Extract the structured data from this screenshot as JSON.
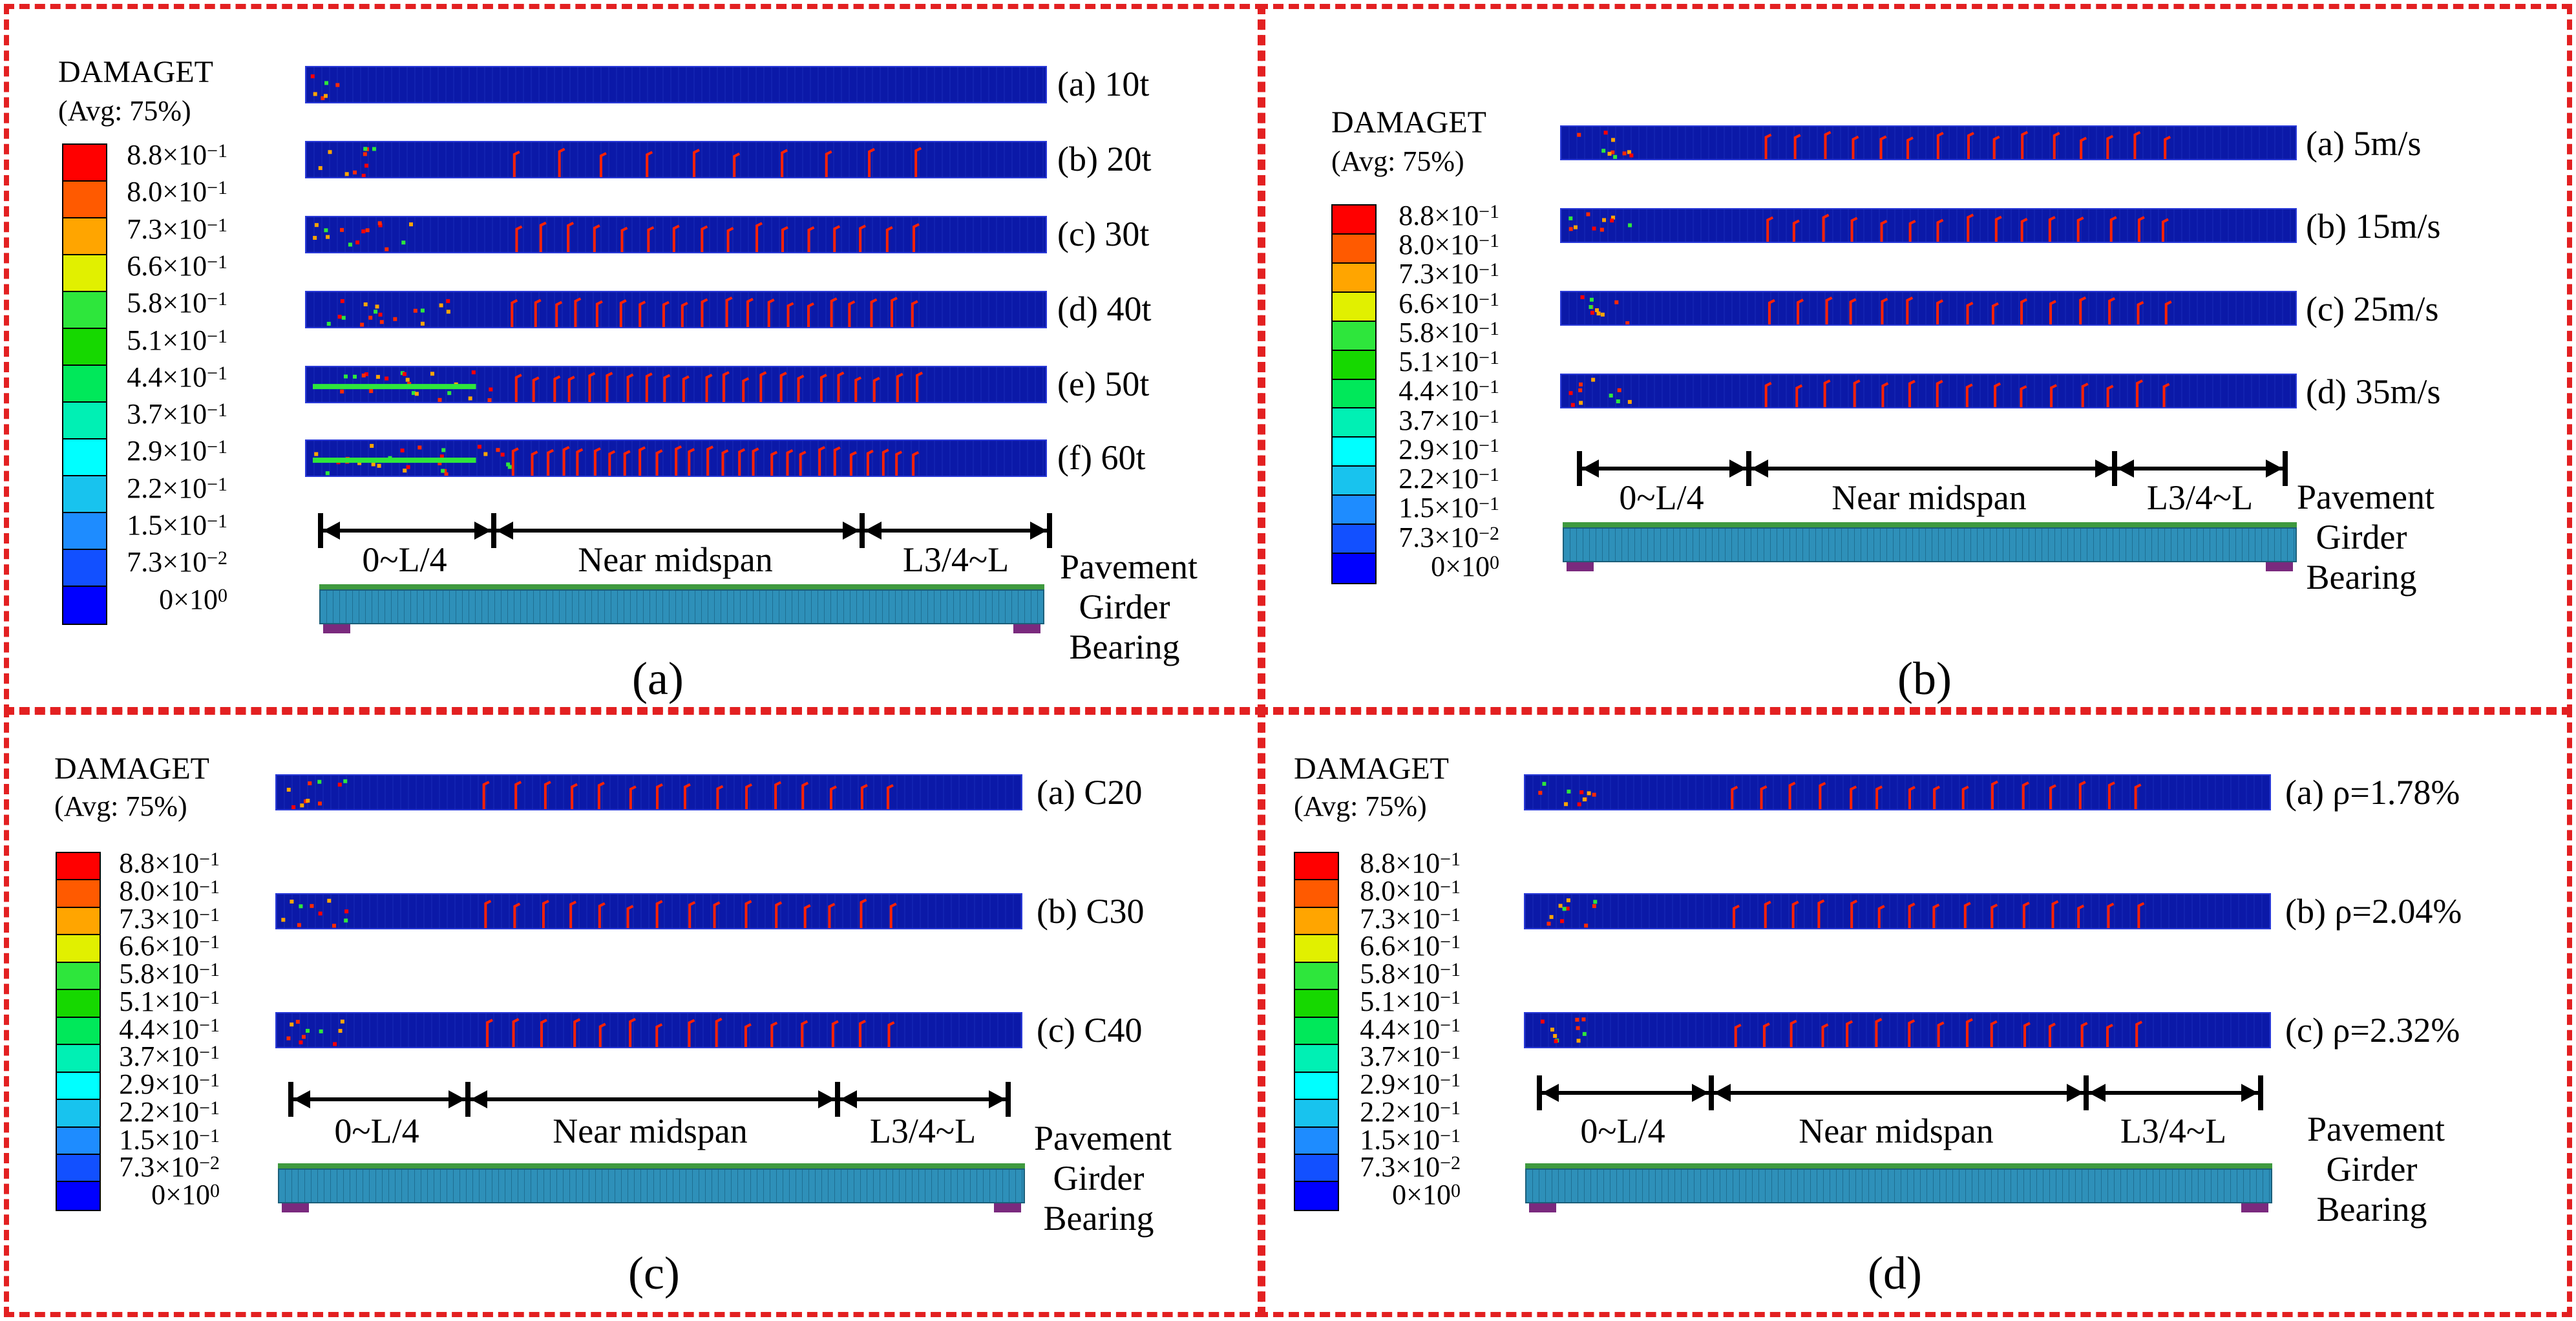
{
  "legend": {
    "title": "DAMAGET",
    "subtitle": "(Avg: 75%)",
    "colors": [
      "#ff0000",
      "#ff5a00",
      "#ffa500",
      "#e1f000",
      "#2ee63c",
      "#16d800",
      "#00e85a",
      "#00f0b4",
      "#00ffff",
      "#18c3ee",
      "#1e8cff",
      "#1250ff",
      "#0000ff"
    ],
    "ticks": [
      {
        "m": "8.8",
        "e": "−1"
      },
      {
        "m": "8.0",
        "e": "−1"
      },
      {
        "m": "7.3",
        "e": "−1"
      },
      {
        "m": "6.6",
        "e": "−1"
      },
      {
        "m": "5.8",
        "e": "−1"
      },
      {
        "m": "5.1",
        "e": "−1"
      },
      {
        "m": "4.4",
        "e": "−1"
      },
      {
        "m": "3.7",
        "e": "−1"
      },
      {
        "m": "2.9",
        "e": "−1"
      },
      {
        "m": "2.2",
        "e": "−1"
      },
      {
        "m": "1.5",
        "e": "−1"
      },
      {
        "m": "7.3",
        "e": "−2"
      },
      {
        "m": "0",
        "e": "0"
      }
    ]
  },
  "zones": {
    "left": "0~L/4",
    "mid": "Near midspan",
    "right": "L3/4~L"
  },
  "parts": {
    "pavement": "Pavement",
    "girder": "Girder",
    "bearing": "Bearing"
  },
  "panels": [
    {
      "caption": "(a)",
      "cases": [
        "(a) 10t",
        "(b) 20t",
        "(c) 30t",
        "(d) 40t",
        "(e) 50t",
        "(f) 60t"
      ]
    },
    {
      "caption": "(b)",
      "cases": [
        "(a) 5m/s",
        "(b) 15m/s",
        "(c) 25m/s",
        "(d) 35m/s"
      ]
    },
    {
      "caption": "(c)",
      "cases": [
        "(a) C20",
        "(b) C30",
        "(c) C40"
      ]
    },
    {
      "caption": "(d)",
      "cases": [
        "(a) ρ=1.78%",
        "(b) ρ=2.04%",
        "(c) ρ=2.32%"
      ]
    }
  ]
}
